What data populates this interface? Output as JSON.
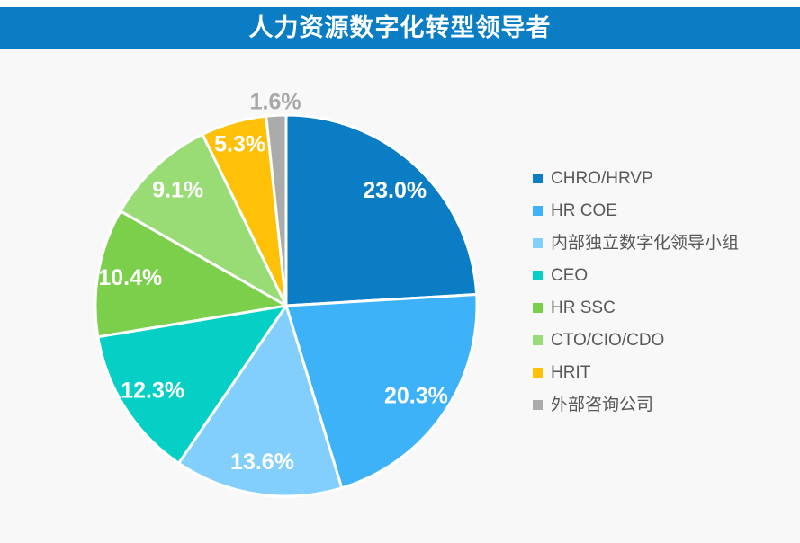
{
  "header": {
    "title": "人力资源数字化转型领导者",
    "bg_color": "#0a7dc5",
    "text_color": "#ffffff"
  },
  "page": {
    "bg_color": "#f8f8f8",
    "top_strip_color": "#ffffff",
    "legend_text_color": "#57585a"
  },
  "chart_data": {
    "type": "pie",
    "title": "人力资源数字化转型领导者",
    "legend_position": "right",
    "labels_sum_note": 95.6,
    "inside_label_color": "#ffffff",
    "slice_border_color": "#ffffff",
    "series": [
      {
        "name": "CHRO/HRVP",
        "value": 23.0,
        "label": "23.0%",
        "color": "#0a7dc5"
      },
      {
        "name": "HR COE",
        "value": 20.3,
        "label": "20.3%",
        "color": "#3db2f8"
      },
      {
        "name": "内部独立数字化领导小组",
        "value": 13.6,
        "label": "13.6%",
        "color": "#82cefc"
      },
      {
        "name": "CEO",
        "value": 12.3,
        "label": "12.3%",
        "color": "#06d0c5"
      },
      {
        "name": "HR SSC",
        "value": 10.4,
        "label": "10.4%",
        "color": "#7bcf4a"
      },
      {
        "name": "CTO/CIO/CDO",
        "value": 9.1,
        "label": "9.1%",
        "color": "#99db75"
      },
      {
        "name": "HRIT",
        "value": 5.3,
        "label": "5.3%",
        "color": "#fec107",
        "label_radius_frac": 0.88
      },
      {
        "name": "外部咨询公司",
        "value": 1.6,
        "label": "1.6%",
        "color": "#ababab",
        "label_outside": true,
        "label_radius_frac": 1.07,
        "label_color": "#a8a8a8"
      }
    ]
  }
}
